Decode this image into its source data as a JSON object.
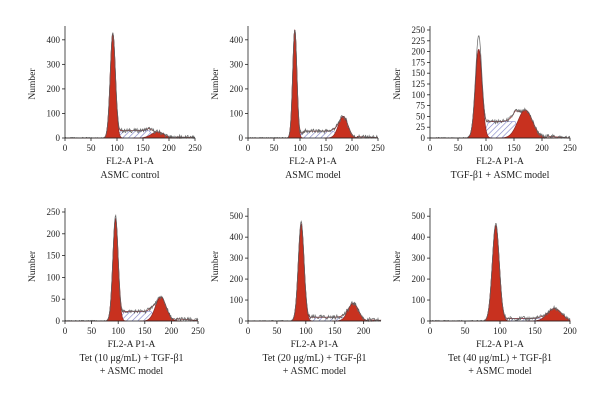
{
  "figure": {
    "colors": {
      "g1_fill": "#c8311f",
      "g2_fill": "#c8311f",
      "s_phase_fill": "#8e8fd0",
      "model_outline": "#8a2a2a",
      "raw_trace": "#666666",
      "axis": "#222222"
    }
  },
  "chart_data": [
    {
      "type": "area",
      "caption": [
        "ASMC control"
      ],
      "xlabel": "FL2-A P1-A",
      "ylabel": "Number",
      "xlim": [
        0,
        250
      ],
      "ylim": [
        0,
        440
      ],
      "xticks": [
        0,
        50,
        100,
        150,
        200,
        250
      ],
      "yticks": [
        0,
        100,
        200,
        300,
        400
      ],
      "grid": false,
      "g1": {
        "mean": 92,
        "sd": 5,
        "peak": 425
      },
      "g2": {
        "mean": 178,
        "sd": 12,
        "peak": 25
      },
      "s_phase": {
        "from": 96,
        "to": 174,
        "level": 30
      },
      "raw_peak": 430
    },
    {
      "type": "area",
      "caption": [
        "ASMC model"
      ],
      "xlabel": "FL2-A P1-A",
      "ylabel": "Number",
      "xlim": [
        0,
        250
      ],
      "ylim": [
        0,
        440
      ],
      "xticks": [
        0,
        50,
        100,
        150,
        200,
        250
      ],
      "yticks": [
        0,
        100,
        200,
        300,
        400
      ],
      "grid": false,
      "g1": {
        "mean": 90,
        "sd": 4,
        "peak": 440
      },
      "g2": {
        "mean": 183,
        "sd": 9,
        "peak": 88
      },
      "s_phase": {
        "from": 94,
        "to": 178,
        "level": 28
      },
      "raw_peak": 445
    },
    {
      "type": "area",
      "caption": [
        "TGF-β1 + ASMC model"
      ],
      "xlabel": "FL2-A P1-A",
      "ylabel": "Number",
      "xlim": [
        0,
        250
      ],
      "ylim": [
        0,
        250
      ],
      "xticks": [
        0,
        50,
        100,
        150,
        200,
        250
      ],
      "yticks": [
        0,
        25,
        50,
        75,
        100,
        125,
        150,
        175,
        200,
        225,
        250
      ],
      "grid": false,
      "g1": {
        "mean": 87,
        "sd": 6,
        "peak": 205
      },
      "g2": {
        "mean": 170,
        "sd": 13,
        "peak": 65
      },
      "s_phase": {
        "from": 93,
        "to": 164,
        "level": 38
      },
      "raw_peak": 238
    },
    {
      "type": "area",
      "caption": [
        "Tet (10 μg/mL) + TGF-β1",
        "+ ASMC model"
      ],
      "xlabel": "FL2-A P1-A",
      "ylabel": "Number",
      "xlim": [
        0,
        250
      ],
      "ylim": [
        0,
        250
      ],
      "xticks": [
        0,
        50,
        100,
        150,
        200,
        250
      ],
      "yticks": [
        0,
        50,
        100,
        150,
        200,
        250
      ],
      "grid": false,
      "g1": {
        "mean": 95,
        "sd": 5,
        "peak": 235
      },
      "g2": {
        "mean": 180,
        "sd": 10,
        "peak": 55
      },
      "s_phase": {
        "from": 100,
        "to": 174,
        "level": 22
      },
      "raw_peak": 242
    },
    {
      "type": "area",
      "caption": [
        "Tet (20 μg/mL) + TGF-β1",
        "+ ASMC model"
      ],
      "xlabel": "FL2-A P1-A",
      "ylabel": "Number",
      "xlim": [
        0,
        230
      ],
      "ylim": [
        0,
        520
      ],
      "xticks": [
        0,
        50,
        100,
        150,
        200
      ],
      "yticks": [
        0,
        100,
        200,
        300,
        400,
        500
      ],
      "grid": false,
      "g1": {
        "mean": 92,
        "sd": 5,
        "peak": 460
      },
      "g2": {
        "mean": 182,
        "sd": 9,
        "peak": 85
      },
      "s_phase": {
        "from": 97,
        "to": 176,
        "level": 18
      },
      "raw_peak": 475
    },
    {
      "type": "area",
      "caption": [
        "Tet (40 μg/mL) + TGF-β1",
        "+ ASMC model"
      ],
      "xlabel": "FL2-A P1-A",
      "ylabel": "Number",
      "xlim": [
        0,
        200
      ],
      "ylim": [
        0,
        520
      ],
      "xticks": [
        0,
        50,
        100,
        150,
        200
      ],
      "yticks": [
        0,
        100,
        200,
        300,
        400,
        500
      ],
      "grid": false,
      "g1": {
        "mean": 94,
        "sd": 5,
        "peak": 455
      },
      "g2": {
        "mean": 178,
        "sd": 10,
        "peak": 60
      },
      "s_phase": {
        "from": 100,
        "to": 170,
        "level": 12
      },
      "raw_peak": 465
    }
  ]
}
